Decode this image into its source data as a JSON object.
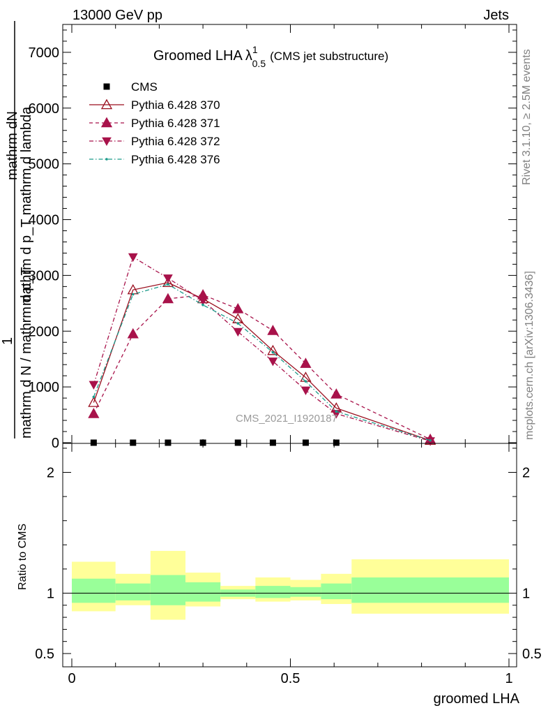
{
  "header": {
    "left": "13000 GeV pp",
    "right": "Jets"
  },
  "side_labels": {
    "top": "Rivet 3.1.10, ≥ 2.5M events",
    "bottom": "mcplots.cern.ch [arXiv:1306.3436]"
  },
  "watermark": "CMS_2021_I1920187",
  "chart_data": [
    {
      "type": "line",
      "title_main": "Groomed LHA",
      "title_symbol": "λ",
      "title_sup": "1",
      "title_sub": "0.5",
      "title_note": "(CMS jet substructure)",
      "ylabel_top": "mathrm dN",
      "ylabel_top2": "mathrm d p_T mathrm d lambda",
      "ylabel_numer": "1",
      "ylabel_denom": "mathrm d N / mathrm d p_T",
      "xlim": [
        0,
        1
      ],
      "ylim": [
        0,
        7500
      ],
      "yticks": [
        0,
        1000,
        2000,
        3000,
        4000,
        5000,
        6000,
        7000
      ],
      "ytick_labels": [
        "0",
        "1000",
        "2000",
        "3000",
        "4000",
        "5000",
        "6000",
        "7000"
      ],
      "grid": false,
      "legend_position": "top-left",
      "legend": [
        "CMS",
        "Pythia 6.428 370",
        "Pythia 6.428 371",
        "Pythia 6.428 372",
        "Pythia 6.428 376"
      ],
      "series": [
        {
          "name": "CMS",
          "color": "#000000",
          "marker": "square",
          "dash": "none",
          "x": [
            0.05,
            0.14,
            0.22,
            0.3,
            0.38,
            0.46,
            0.535,
            0.605
          ],
          "y": [
            0,
            0,
            0,
            0,
            0,
            0,
            0,
            0
          ]
        },
        {
          "name": "Pythia 6.428 370",
          "color": "#9a0e1e",
          "marker": "triangle-up-open",
          "dash": "solid",
          "x": [
            0.05,
            0.14,
            0.22,
            0.3,
            0.38,
            0.46,
            0.535,
            0.605,
            0.82
          ],
          "y": [
            720,
            2740,
            2870,
            2580,
            2220,
            1650,
            1170,
            620,
            40
          ]
        },
        {
          "name": "Pythia 6.428 371",
          "color": "#a8124a",
          "marker": "triangle-up",
          "dash": "dashed",
          "x": [
            0.05,
            0.14,
            0.22,
            0.3,
            0.38,
            0.46,
            0.535,
            0.605,
            0.82
          ],
          "y": [
            520,
            1950,
            2580,
            2650,
            2400,
            2010,
            1420,
            870,
            60
          ]
        },
        {
          "name": "Pythia 6.428 372",
          "color": "#a8124a",
          "marker": "triangle-down",
          "dash": "dashdot",
          "x": [
            0.05,
            0.14,
            0.22,
            0.3,
            0.38,
            0.46,
            0.535,
            0.605,
            0.82
          ],
          "y": [
            1040,
            3330,
            2950,
            2550,
            1990,
            1460,
            940,
            520,
            30
          ]
        },
        {
          "name": "Pythia 6.428 376",
          "color": "#1a9a8a",
          "marker": "dot",
          "dash": "dashdot",
          "x": [
            0.05,
            0.14,
            0.22,
            0.3,
            0.38,
            0.46,
            0.535,
            0.605,
            0.82
          ],
          "y": [
            820,
            2660,
            2840,
            2470,
            2140,
            1620,
            1100,
            560,
            40
          ]
        }
      ]
    },
    {
      "type": "area",
      "ylabel": "Ratio to CMS",
      "xlabel": "groomed LHA",
      "xlim": [
        0,
        1
      ],
      "ylim": [
        0.39,
        2.24
      ],
      "xticks": [
        0,
        0.5,
        1
      ],
      "xtick_labels": [
        "0",
        "0.5",
        "1"
      ],
      "yticks": [
        0.5,
        1,
        2
      ],
      "ytick_labels": [
        "0.5",
        "1",
        "2"
      ],
      "reference_line": 1,
      "bands": {
        "edges": [
          0.0,
          0.1,
          0.18,
          0.26,
          0.34,
          0.42,
          0.5,
          0.57,
          0.64,
          1.0
        ],
        "inner": {
          "color": "#99ff99",
          "lower": [
            0.92,
            0.94,
            0.9,
            0.93,
            0.97,
            0.96,
            0.97,
            0.95,
            0.92
          ],
          "upper": [
            1.12,
            1.08,
            1.15,
            1.09,
            1.03,
            1.06,
            1.05,
            1.08,
            1.13
          ]
        },
        "outer": {
          "color": "#ffff99",
          "lower": [
            0.85,
            0.9,
            0.78,
            0.89,
            0.95,
            0.93,
            0.94,
            0.91,
            0.83
          ],
          "upper": [
            1.26,
            1.16,
            1.35,
            1.17,
            1.06,
            1.13,
            1.11,
            1.16,
            1.28
          ]
        }
      }
    }
  ]
}
